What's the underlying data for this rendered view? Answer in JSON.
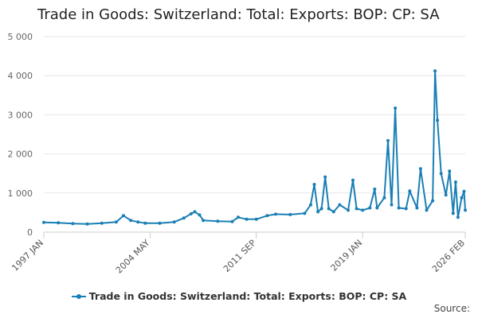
{
  "chart_data": {
    "type": "line",
    "title": "Trade in Goods: Switzerland: Total: Exports: BOP: CP: SA",
    "xlabel": "",
    "ylabel": "",
    "ylim": [
      0,
      5000
    ],
    "yticks": [
      0,
      1000,
      2000,
      3000,
      4000,
      5000
    ],
    "ytick_labels": [
      "0",
      "1 000",
      "2 000",
      "3 000",
      "4 000",
      "5 000"
    ],
    "x_range": [
      "1997 JAN",
      "2026 FEB"
    ],
    "xtick_labels": [
      "1997 JAN",
      "2004 MAY",
      "2011 SEP",
      "2019 JAN",
      "2026 FEB"
    ],
    "grid": true,
    "legend": "bottom-center",
    "series": [
      {
        "name": "Trade in Goods: Switzerland: Total: Exports: BOP: CP: SA",
        "color": "#1a7fb5",
        "points": [
          [
            "1997-01",
            250
          ],
          [
            "1998-01",
            240
          ],
          [
            "1999-01",
            220
          ],
          [
            "2000-01",
            210
          ],
          [
            "2001-01",
            230
          ],
          [
            "2002-01",
            260
          ],
          [
            "2002-07",
            420
          ],
          [
            "2003-01",
            300
          ],
          [
            "2003-07",
            260
          ],
          [
            "2004-01",
            230
          ],
          [
            "2005-01",
            230
          ],
          [
            "2006-01",
            260
          ],
          [
            "2006-09",
            360
          ],
          [
            "2007-03",
            470
          ],
          [
            "2007-06",
            520
          ],
          [
            "2007-10",
            440
          ],
          [
            "2008-01",
            300
          ],
          [
            "2009-01",
            280
          ],
          [
            "2010-01",
            270
          ],
          [
            "2010-06",
            380
          ],
          [
            "2011-01",
            330
          ],
          [
            "2011-09",
            330
          ],
          [
            "2012-06",
            420
          ],
          [
            "2013-01",
            460
          ],
          [
            "2014-01",
            450
          ],
          [
            "2015-01",
            480
          ],
          [
            "2015-06",
            700
          ],
          [
            "2015-09",
            1220
          ],
          [
            "2015-12",
            520
          ],
          [
            "2016-03",
            600
          ],
          [
            "2016-06",
            1410
          ],
          [
            "2016-09",
            600
          ],
          [
            "2017-01",
            520
          ],
          [
            "2017-06",
            700
          ],
          [
            "2018-01",
            560
          ],
          [
            "2018-05",
            1330
          ],
          [
            "2018-08",
            600
          ],
          [
            "2019-01",
            560
          ],
          [
            "2019-07",
            620
          ],
          [
            "2019-11",
            1100
          ],
          [
            "2020-01",
            620
          ],
          [
            "2020-07",
            880
          ],
          [
            "2020-10",
            2340
          ],
          [
            "2021-01",
            700
          ],
          [
            "2021-04",
            3170
          ],
          [
            "2021-07",
            620
          ],
          [
            "2022-01",
            600
          ],
          [
            "2022-04",
            1050
          ],
          [
            "2022-10",
            620
          ],
          [
            "2023-01",
            1620
          ],
          [
            "2023-06",
            560
          ],
          [
            "2023-11",
            800
          ],
          [
            "2024-01",
            4120
          ],
          [
            "2024-03",
            2860
          ],
          [
            "2024-06",
            1500
          ],
          [
            "2024-10",
            950
          ],
          [
            "2025-01",
            1560
          ],
          [
            "2025-04",
            480
          ],
          [
            "2025-06",
            1280
          ],
          [
            "2025-08",
            380
          ],
          [
            "2025-11",
            880
          ],
          [
            "2026-01",
            1040
          ],
          [
            "2026-02",
            560
          ]
        ]
      }
    ]
  },
  "source_label": "Source:"
}
